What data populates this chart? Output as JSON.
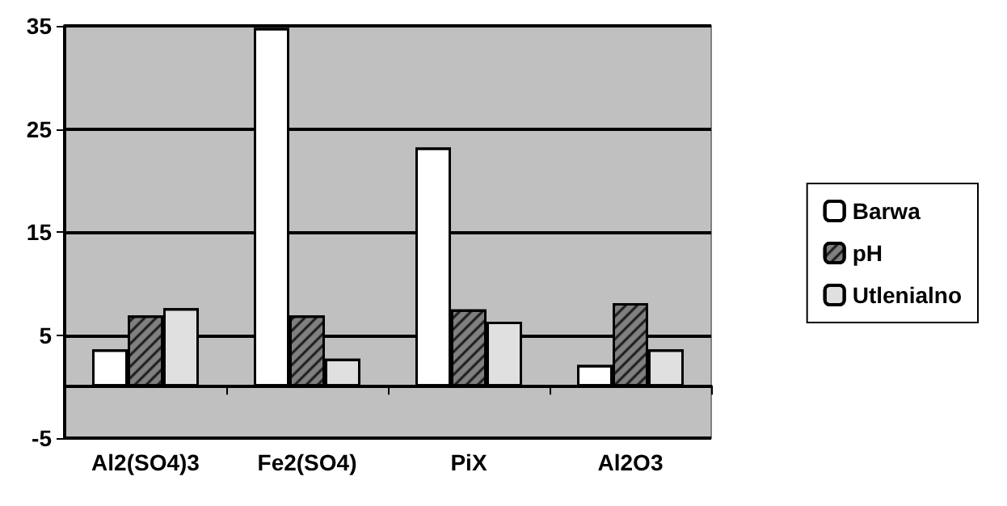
{
  "chart_data": {
    "type": "bar",
    "categories": [
      "Al2(SO4)3",
      "Fe2(SO4)",
      "PiX",
      "Al2O3"
    ],
    "series": [
      {
        "name": "Barwa",
        "color": "#ffffff",
        "values": [
          3.6,
          34.8,
          23.2,
          2.1
        ]
      },
      {
        "name": "pH",
        "color": "#808080",
        "values": [
          6.9,
          6.9,
          7.5,
          8.1
        ]
      },
      {
        "name": "Utlenialno",
        "color": "#e0e0e0",
        "values": [
          7.6,
          2.7,
          6.3,
          3.6
        ]
      }
    ],
    "ylim": [
      -5,
      35
    ],
    "yticks": [
      -5,
      5,
      15,
      25,
      35
    ],
    "grid": "y",
    "legend": "right"
  }
}
